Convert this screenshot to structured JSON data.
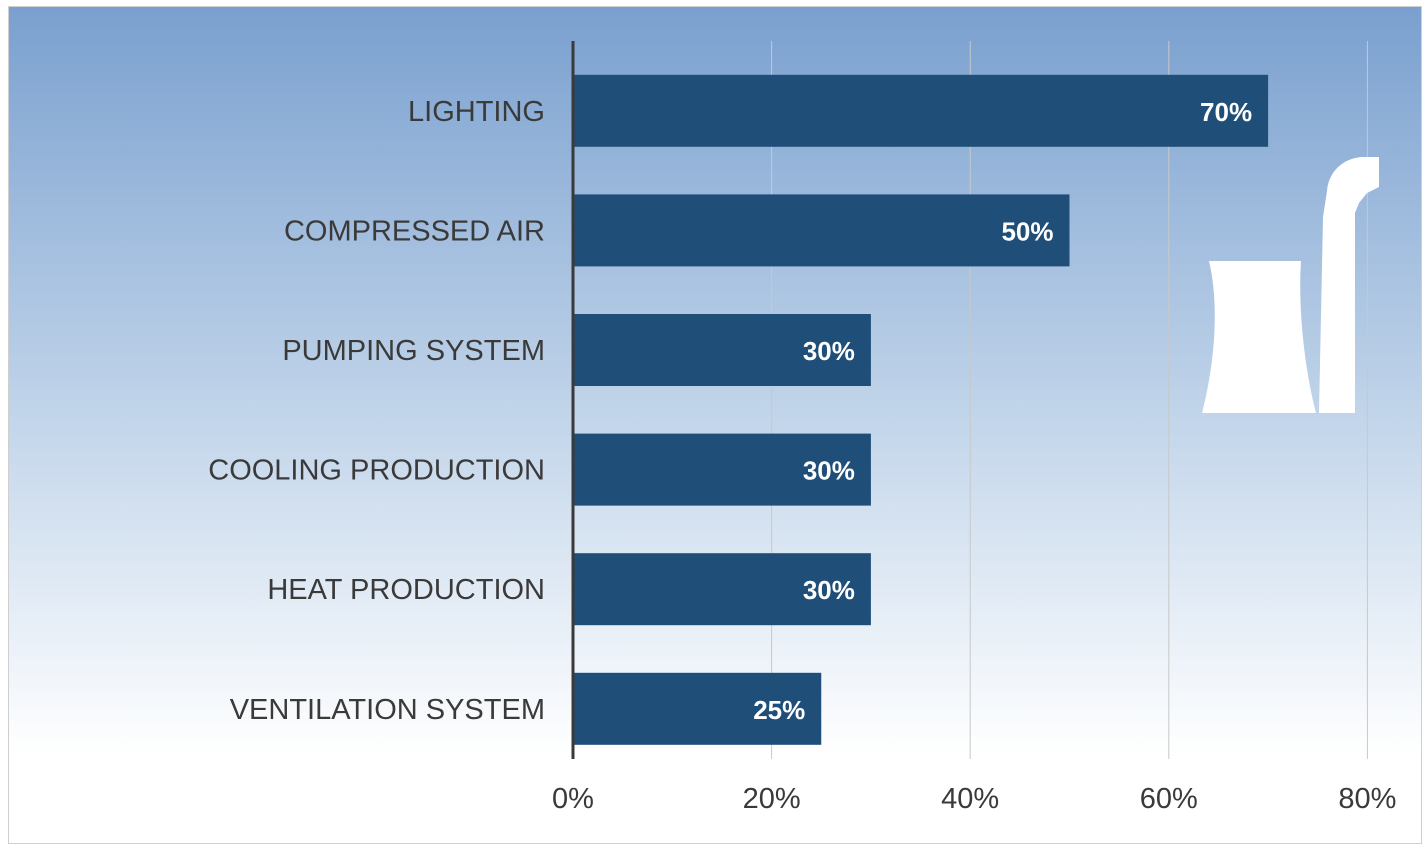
{
  "colors": {
    "bar": "#1f4e79",
    "bar_label": "#ffffff",
    "category_label": "#3a3a3a",
    "tick_label": "#3a3a3a",
    "axis": "#3a3a3a",
    "grid": "#c8c8c8",
    "bg_top": "#7aa0cf",
    "bg_bottom": "#ffffff",
    "illustration": "#ffffff"
  },
  "illustration": {
    "icon": "power-plant-cooling-tower-icon"
  },
  "chart_data": {
    "type": "bar",
    "orientation": "horizontal",
    "categories": [
      "LIGHTING",
      "COMPRESSED AIR",
      "PUMPING SYSTEM",
      "COOLING PRODUCTION",
      "HEAT PRODUCTION",
      "VENTILATION SYSTEM"
    ],
    "values": [
      70,
      50,
      30,
      30,
      30,
      25
    ],
    "data_labels": [
      "70%",
      "50%",
      "30%",
      "30%",
      "30%",
      "25%"
    ],
    "x_ticks": [
      0,
      20,
      40,
      60,
      80
    ],
    "x_tick_labels": [
      "0%",
      "20%",
      "40%",
      "60%",
      "80%"
    ],
    "xlim": [
      0,
      80
    ],
    "grid": true,
    "legend": "none",
    "title": "",
    "xlabel": "",
    "ylabel": ""
  }
}
